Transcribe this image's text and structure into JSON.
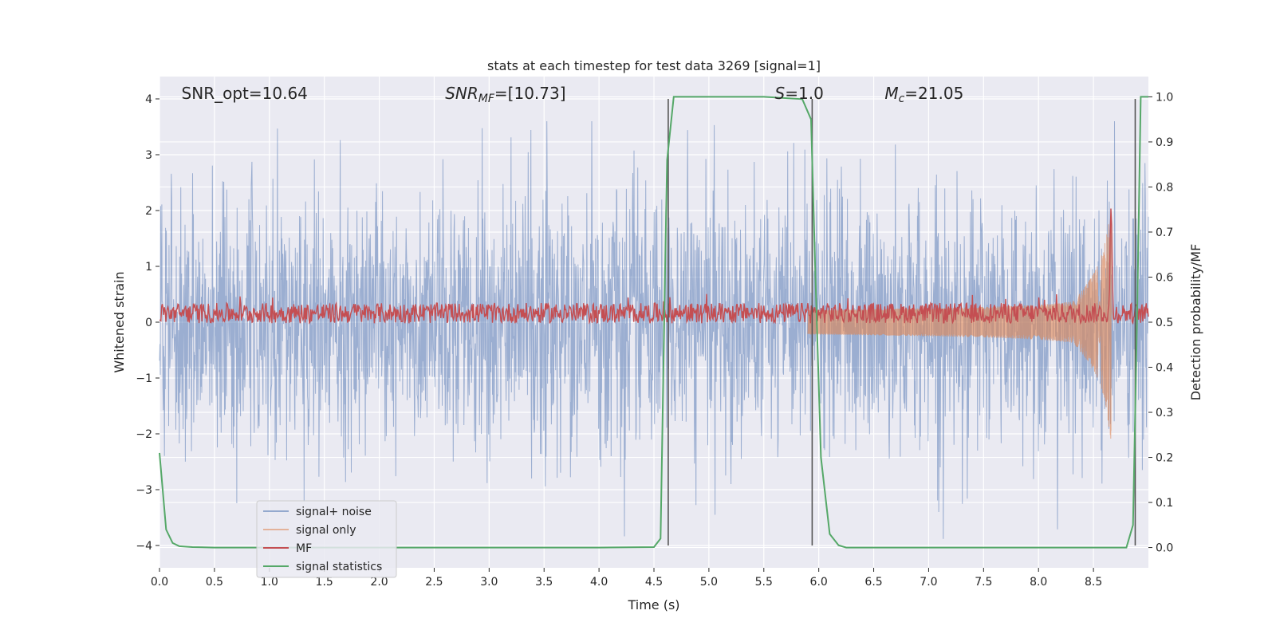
{
  "chart_data": {
    "type": "line",
    "title": "stats at each timestep for test data 3269 [signal=1]",
    "xlabel": "Time (s)",
    "ylabel": "Whitened strain",
    "y2label": "Detection probability/MF",
    "xlim": [
      0.0,
      9.0
    ],
    "ylim": [
      -4.4,
      4.4
    ],
    "y2lim": [
      -0.045,
      1.045
    ],
    "xticks": [
      0.0,
      0.5,
      1.0,
      1.5,
      2.0,
      2.5,
      3.0,
      3.5,
      4.0,
      4.5,
      5.0,
      5.5,
      6.0,
      6.5,
      7.0,
      7.5,
      8.0,
      8.5
    ],
    "xtick_labels": [
      "0.0",
      "0.5",
      "1.0",
      "1.5",
      "2.0",
      "2.5",
      "3.0",
      "3.5",
      "4.0",
      "4.5",
      "5.0",
      "5.5",
      "6.0",
      "6.5",
      "7.0",
      "7.5",
      "8.0",
      "8.5"
    ],
    "yticks": [
      -4,
      -3,
      -2,
      -1,
      0,
      1,
      2,
      3,
      4
    ],
    "ytick_labels": [
      "−4",
      "−3",
      "−2",
      "−1",
      "0",
      "1",
      "2",
      "3",
      "4"
    ],
    "y2ticks": [
      0.0,
      0.1,
      0.2,
      0.3,
      0.4,
      0.5,
      0.6,
      0.7,
      0.8,
      0.9,
      1.0
    ],
    "y2tick_labels": [
      "0.0",
      "0.1",
      "0.2",
      "0.3",
      "0.4",
      "0.5",
      "0.6",
      "0.7",
      "0.8",
      "0.9",
      "1.0"
    ],
    "grid": true,
    "legend_position": "lower-left",
    "annotations": [
      {
        "key": "snr_opt",
        "text": "SNR_opt=10.64",
        "x": 0.2
      },
      {
        "key": "snr_mf",
        "text": "SNR_MF=[10.73]",
        "x": 2.6
      },
      {
        "key": "s",
        "text": "S=1.0",
        "x": 5.6
      },
      {
        "key": "mc",
        "text": "M_c=21.05",
        "x": 6.6
      }
    ],
    "vertical_lines": [
      4.63,
      5.94,
      8.88
    ],
    "series": [
      {
        "name": "signal+ noise",
        "color": "#4c72b0",
        "axis": "left",
        "description_values": "whitened noise samples, amplitude about ±2.5 with peaks near ±3.5"
      },
      {
        "name": "signal only",
        "color": "#dd8452",
        "axis": "left",
        "chirp": {
          "start": 5.9,
          "peak_time": 8.66,
          "peak_amplitude": 2.1
        }
      },
      {
        "name": "MF",
        "color": "#c44e52",
        "axis": "right",
        "baseline": 0.52,
        "peak": {
          "x": 8.66,
          "y": 0.76
        }
      },
      {
        "name": "signal statistics",
        "color": "#55a868",
        "axis": "right",
        "x": [
          0.0,
          0.06,
          0.12,
          0.18,
          0.3,
          0.5,
          1.0,
          2.0,
          3.0,
          4.0,
          4.5,
          4.56,
          4.6,
          4.62,
          4.68,
          5.0,
          5.5,
          5.85,
          5.93,
          5.97,
          6.02,
          6.1,
          6.18,
          6.25,
          7.0,
          8.0,
          8.8,
          8.86,
          8.9,
          8.93,
          8.95,
          9.0
        ],
        "y": [
          0.21,
          0.04,
          0.01,
          0.003,
          0.001,
          0.0,
          0.0,
          0.0,
          0.0,
          0.0,
          0.001,
          0.02,
          0.6,
          0.86,
          1.0,
          1.0,
          1.0,
          0.995,
          0.95,
          0.6,
          0.2,
          0.03,
          0.005,
          0.0,
          0.0,
          0.0,
          0.0,
          0.05,
          0.55,
          1.0,
          1.0,
          1.0
        ]
      }
    ]
  }
}
